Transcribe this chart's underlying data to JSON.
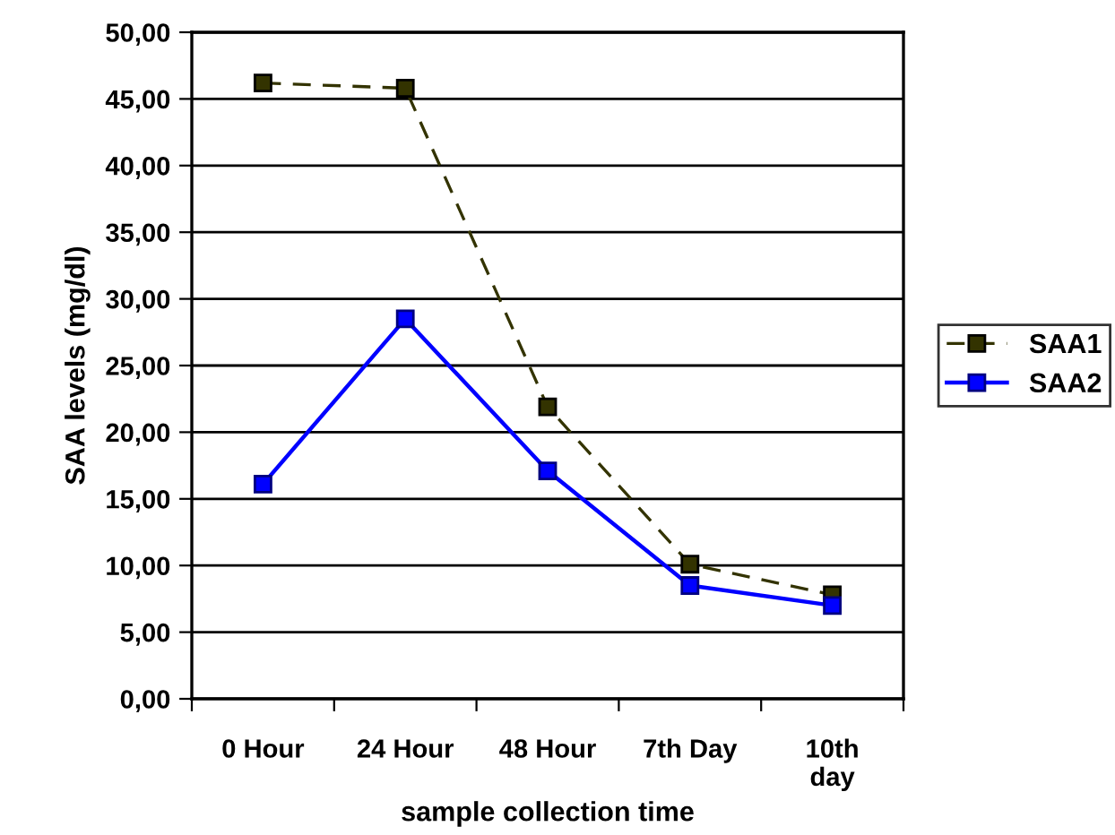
{
  "chart_data": {
    "type": "line",
    "xlabel": "sample collection time",
    "ylabel": "SAA levels (mg/dl)",
    "categories": [
      "0 Hour",
      "24 Hour",
      "48 Hour",
      "7th Day",
      "10th\nday"
    ],
    "series": [
      {
        "name": "SAA1",
        "color": "#333300",
        "values": [
          46.2,
          45.8,
          21.9,
          10.1,
          7.8
        ],
        "line_style": "dashed",
        "marker": "square"
      },
      {
        "name": "SAA2",
        "color": "#0000ff",
        "values": [
          16.1,
          28.5,
          17.1,
          8.5,
          7.0
        ],
        "line_style": "solid",
        "marker": "square"
      }
    ],
    "ylim": [
      0,
      50
    ],
    "yticks": [
      {
        "value": 0,
        "label": "0,00"
      },
      {
        "value": 5,
        "label": "5,00"
      },
      {
        "value": 10,
        "label": "10,00"
      },
      {
        "value": 15,
        "label": "15,00"
      },
      {
        "value": 20,
        "label": "20,00"
      },
      {
        "value": 25,
        "label": "25,00"
      },
      {
        "value": 30,
        "label": "30,00"
      },
      {
        "value": 35,
        "label": "35,00"
      },
      {
        "value": 40,
        "label": "40,00"
      },
      {
        "value": 45,
        "label": "45,00"
      },
      {
        "value": 50,
        "label": "50,00"
      }
    ],
    "grid": "y",
    "legend": "right"
  }
}
